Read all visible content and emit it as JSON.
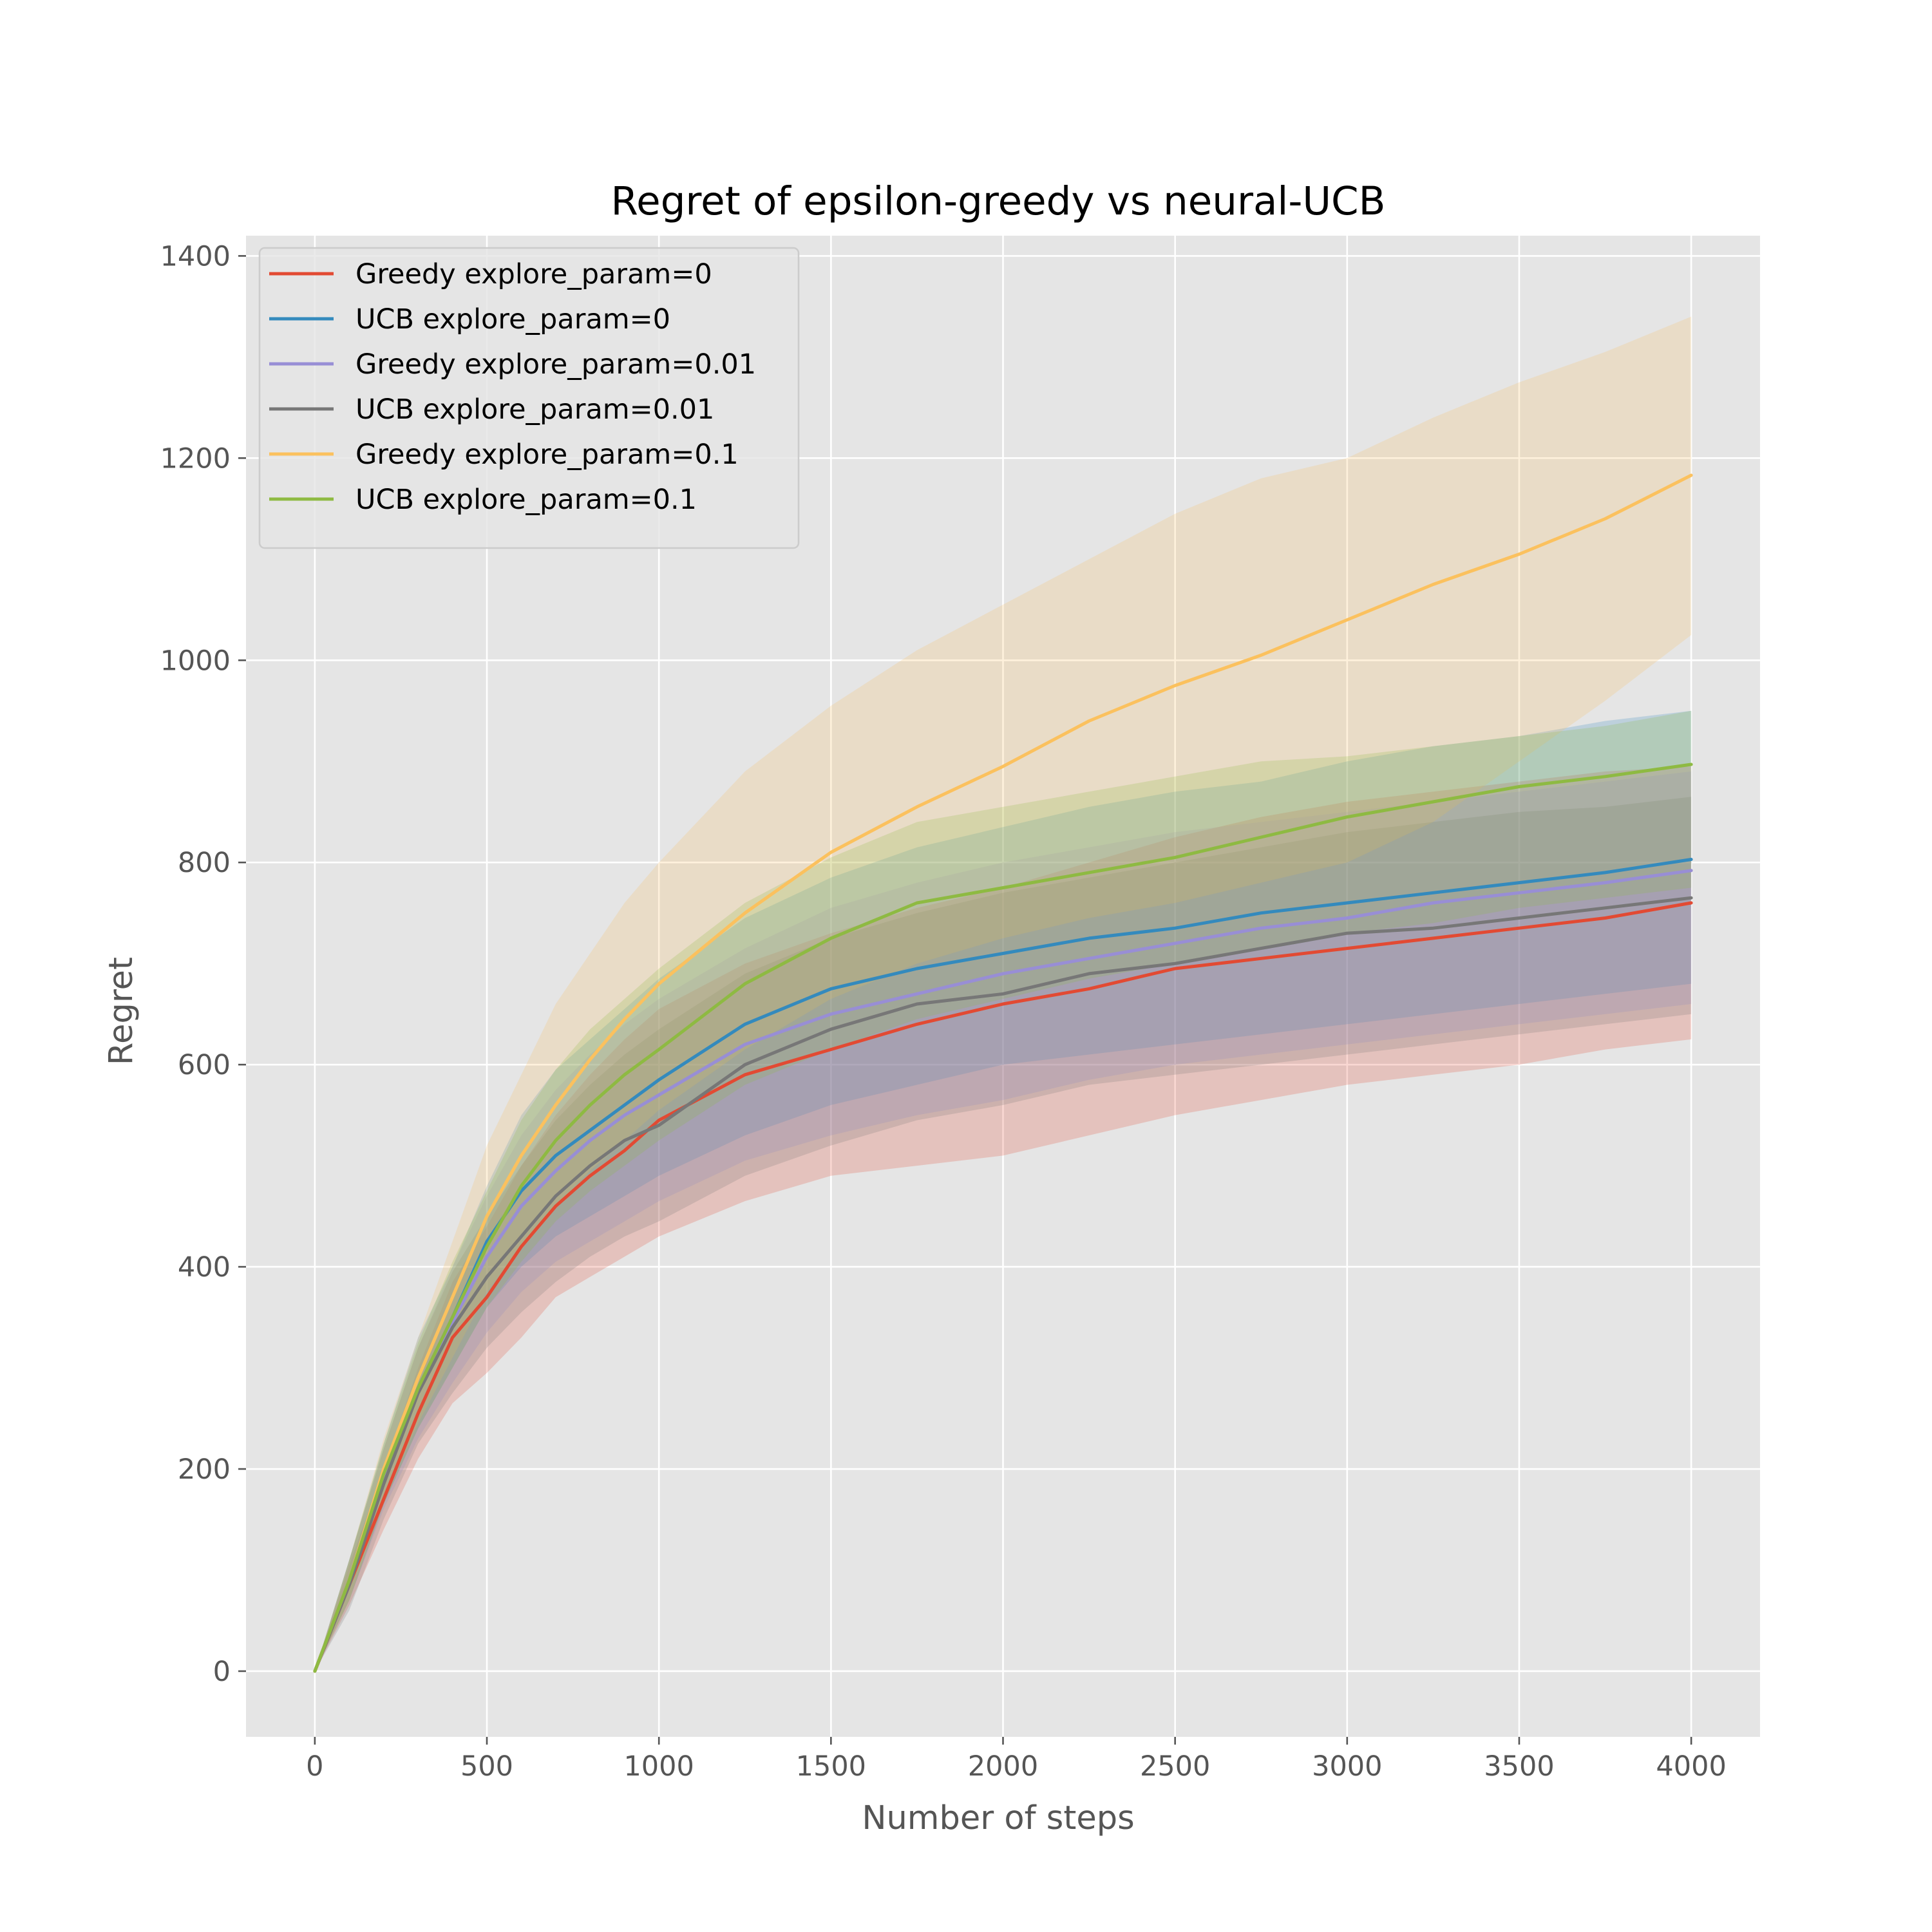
{
  "chart_data": {
    "type": "line",
    "title": "Regret of epsilon-greedy vs neural-UCB",
    "xlabel": "Number of steps",
    "ylabel": "Regret",
    "xlim": [
      -200,
      4200
    ],
    "ylim": [
      -65,
      1420
    ],
    "xticks": [
      0,
      500,
      1000,
      1500,
      2000,
      2500,
      3000,
      3500,
      4000
    ],
    "yticks": [
      0,
      200,
      400,
      600,
      800,
      1000,
      1200,
      1400
    ],
    "xtick_labels": [
      "0",
      "500",
      "1000",
      "1500",
      "2000",
      "2500",
      "3000",
      "3500",
      "4000"
    ],
    "ytick_labels": [
      "0",
      "200",
      "400",
      "600",
      "800",
      "1000",
      "1200",
      "1400"
    ],
    "grid": true,
    "background": "#e5e5e5",
    "legend_position": "upper-left",
    "x": [
      0,
      100,
      200,
      300,
      400,
      500,
      600,
      700,
      800,
      900,
      1000,
      1250,
      1500,
      1750,
      2000,
      2250,
      2500,
      2750,
      3000,
      3250,
      3500,
      3750,
      4000
    ],
    "series": [
      {
        "name": "Greedy explore_param=0",
        "color": "#E24A33",
        "values": [
          0,
          85,
          170,
          255,
          330,
          370,
          420,
          460,
          490,
          515,
          545,
          590,
          615,
          640,
          660,
          675,
          695,
          705,
          715,
          725,
          735,
          745,
          760
        ],
        "lower": [
          0,
          65,
          140,
          210,
          265,
          295,
          330,
          370,
          390,
          410,
          430,
          465,
          490,
          500,
          510,
          530,
          550,
          565,
          580,
          590,
          600,
          615,
          625
        ],
        "upper": [
          0,
          105,
          200,
          300,
          385,
          440,
          500,
          550,
          590,
          625,
          655,
          700,
          730,
          755,
          775,
          800,
          825,
          845,
          860,
          870,
          880,
          890,
          895
        ]
      },
      {
        "name": "UCB explore_param=0",
        "color": "#348ABD",
        "values": [
          0,
          90,
          195,
          280,
          350,
          425,
          475,
          510,
          535,
          560,
          585,
          640,
          675,
          695,
          710,
          725,
          735,
          750,
          760,
          770,
          780,
          790,
          803
        ],
        "lower": [
          0,
          70,
          165,
          240,
          300,
          360,
          400,
          430,
          450,
          470,
          490,
          530,
          560,
          580,
          600,
          610,
          620,
          630,
          640,
          650,
          660,
          670,
          680
        ],
        "upper": [
          0,
          110,
          225,
          330,
          400,
          480,
          550,
          595,
          625,
          655,
          685,
          745,
          785,
          815,
          835,
          855,
          870,
          880,
          900,
          915,
          925,
          940,
          950
        ]
      },
      {
        "name": "Greedy explore_param=0.01",
        "color": "#988ED5",
        "values": [
          0,
          90,
          190,
          275,
          345,
          410,
          460,
          495,
          525,
          550,
          570,
          620,
          650,
          670,
          690,
          705,
          720,
          735,
          745,
          760,
          770,
          780,
          792
        ],
        "lower": [
          0,
          70,
          160,
          230,
          285,
          335,
          375,
          405,
          425,
          445,
          465,
          505,
          530,
          550,
          565,
          585,
          600,
          610,
          620,
          630,
          640,
          650,
          660
        ],
        "upper": [
          0,
          110,
          220,
          320,
          400,
          470,
          530,
          575,
          610,
          640,
          665,
          715,
          755,
          780,
          800,
          815,
          830,
          840,
          850,
          860,
          870,
          880,
          890
        ]
      },
      {
        "name": "UCB explore_param=0.01",
        "color": "#777777",
        "values": [
          0,
          85,
          185,
          275,
          340,
          390,
          430,
          470,
          500,
          525,
          540,
          600,
          635,
          660,
          670,
          690,
          700,
          715,
          730,
          735,
          745,
          755,
          765
        ],
        "lower": [
          0,
          60,
          150,
          225,
          275,
          320,
          355,
          385,
          410,
          430,
          445,
          490,
          520,
          545,
          560,
          580,
          590,
          600,
          610,
          620,
          630,
          640,
          650
        ],
        "upper": [
          0,
          110,
          220,
          320,
          395,
          450,
          500,
          545,
          580,
          610,
          635,
          690,
          725,
          750,
          770,
          785,
          800,
          815,
          830,
          840,
          850,
          855,
          865
        ]
      },
      {
        "name": "Greedy explore_param=0.1",
        "color": "#FBC15E",
        "values": [
          0,
          90,
          200,
          290,
          370,
          450,
          510,
          560,
          605,
          645,
          680,
          750,
          810,
          855,
          895,
          940,
          975,
          1005,
          1040,
          1075,
          1105,
          1140,
          1183
        ],
        "lower": [
          0,
          70,
          170,
          245,
          310,
          375,
          420,
          460,
          495,
          525,
          555,
          615,
          665,
          700,
          725,
          745,
          760,
          780,
          800,
          840,
          900,
          960,
          1025
        ],
        "upper": [
          0,
          110,
          230,
          330,
          425,
          520,
          590,
          660,
          710,
          760,
          800,
          890,
          955,
          1010,
          1055,
          1100,
          1145,
          1180,
          1200,
          1240,
          1275,
          1305,
          1340
        ]
      },
      {
        "name": "UCB explore_param=0.1",
        "color": "#8EBA42",
        "values": [
          0,
          90,
          195,
          280,
          350,
          420,
          480,
          525,
          560,
          590,
          615,
          680,
          725,
          760,
          775,
          790,
          805,
          825,
          845,
          860,
          875,
          885,
          897
        ],
        "lower": [
          0,
          70,
          165,
          240,
          300,
          360,
          405,
          445,
          475,
          500,
          525,
          580,
          615,
          645,
          665,
          685,
          700,
          715,
          730,
          740,
          755,
          765,
          775
        ],
        "upper": [
          0,
          110,
          225,
          325,
          405,
          475,
          545,
          595,
          635,
          665,
          695,
          760,
          805,
          840,
          855,
          870,
          885,
          900,
          905,
          915,
          925,
          935,
          950
        ]
      }
    ]
  }
}
